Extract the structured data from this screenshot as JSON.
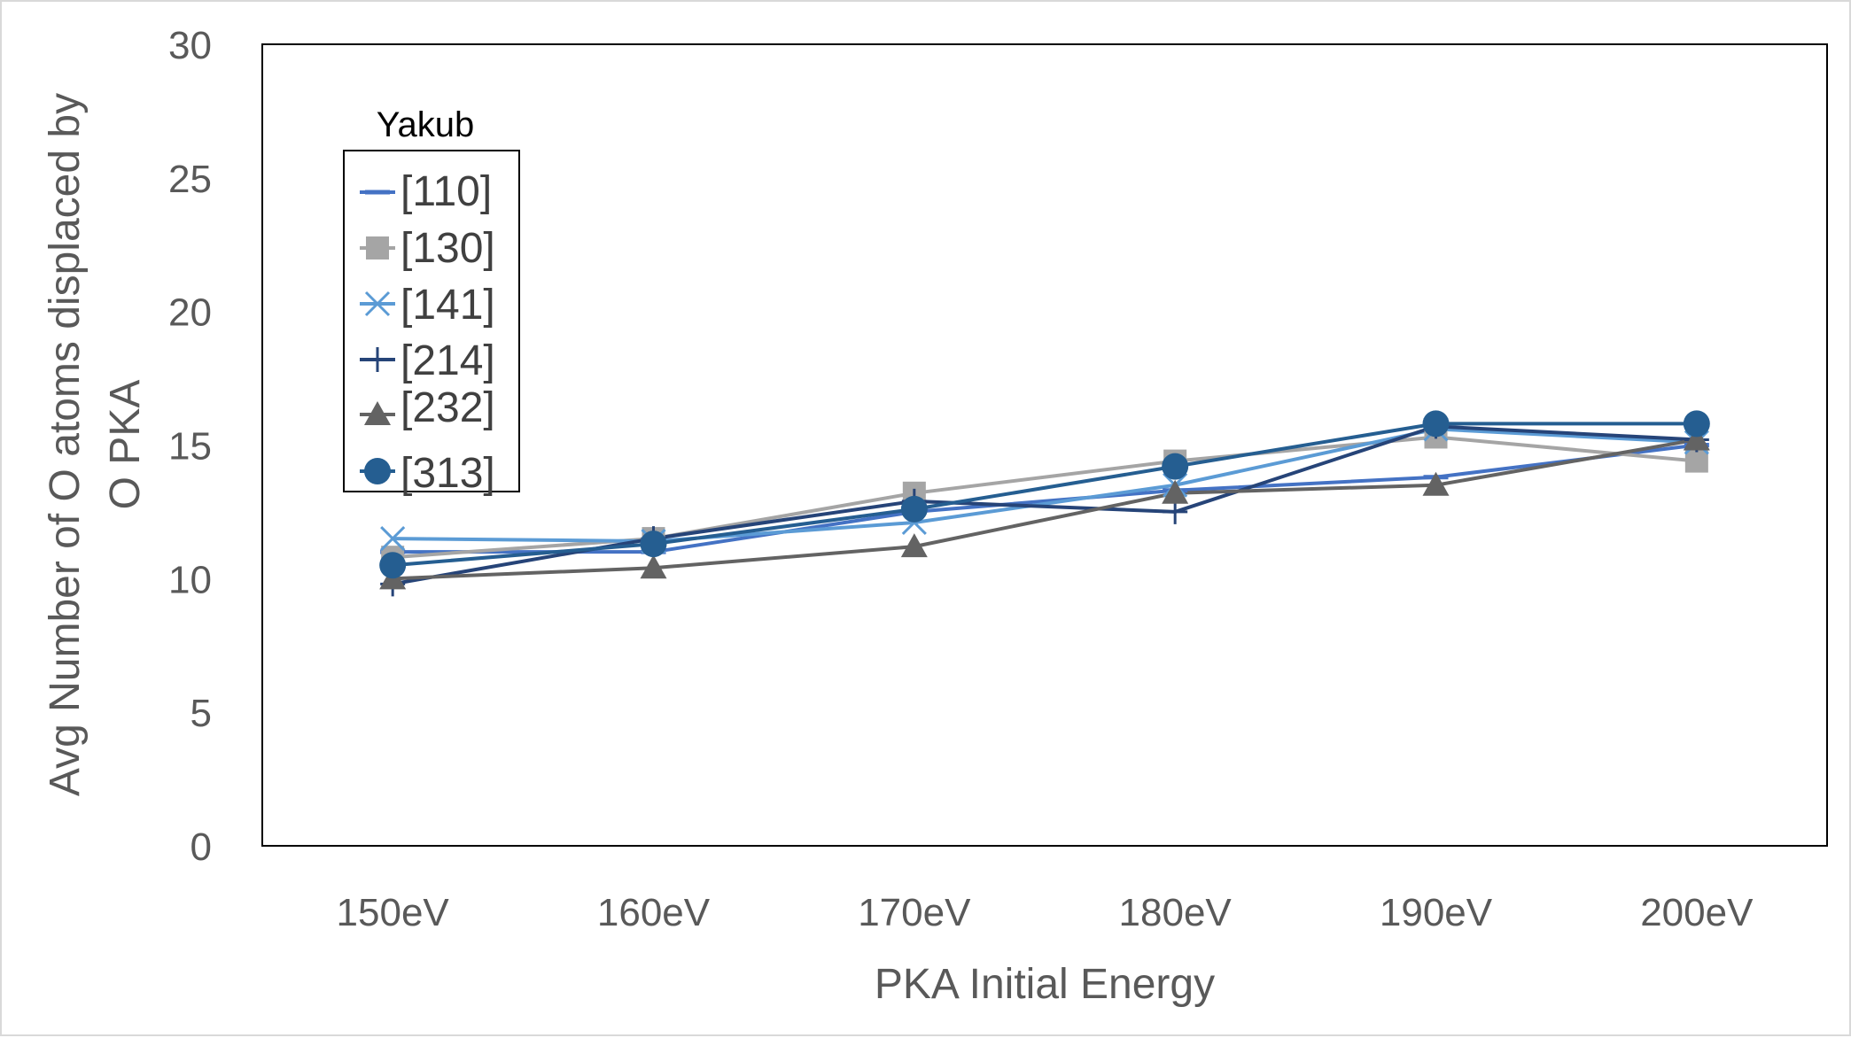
{
  "chart_data": {
    "type": "line",
    "title": "",
    "xlabel": "PKA Initial Energy",
    "ylabel_line1": "Avg Number of O atoms displaced by",
    "ylabel_line2": "O PKA",
    "categories": [
      "150eV",
      "160eV",
      "170eV",
      "180eV",
      "190eV",
      "200eV"
    ],
    "ylim": [
      0,
      30
    ],
    "yticks": [
      0,
      5,
      10,
      15,
      20,
      25,
      30
    ],
    "grid": false,
    "legend_title": "Yakub",
    "legend_position": "top-left",
    "series": [
      {
        "name": "[110]",
        "color": "#4472c4",
        "marker": "dash",
        "values": [
          11.0,
          11.0,
          12.5,
          13.3,
          13.8,
          15.0
        ]
      },
      {
        "name": "[130]",
        "color": "#a5a5a5",
        "marker": "square",
        "values": [
          10.8,
          11.5,
          13.2,
          14.4,
          15.3,
          14.4
        ]
      },
      {
        "name": "[141]",
        "color": "#5b9bd5",
        "marker": "x",
        "values": [
          11.5,
          11.4,
          12.1,
          13.5,
          15.6,
          15.1
        ]
      },
      {
        "name": "[214]",
        "color": "#264478",
        "marker": "plus",
        "values": [
          9.8,
          11.5,
          12.9,
          12.5,
          15.7,
          15.2
        ]
      },
      {
        "name": "[232]",
        "color": "#636363",
        "marker": "triangle",
        "values": [
          10.0,
          10.4,
          11.2,
          13.2,
          13.5,
          15.2
        ]
      },
      {
        "name": "[313]",
        "color": "#255e91",
        "marker": "circle",
        "values": [
          10.5,
          11.3,
          12.6,
          14.2,
          15.8,
          15.8
        ]
      }
    ]
  }
}
